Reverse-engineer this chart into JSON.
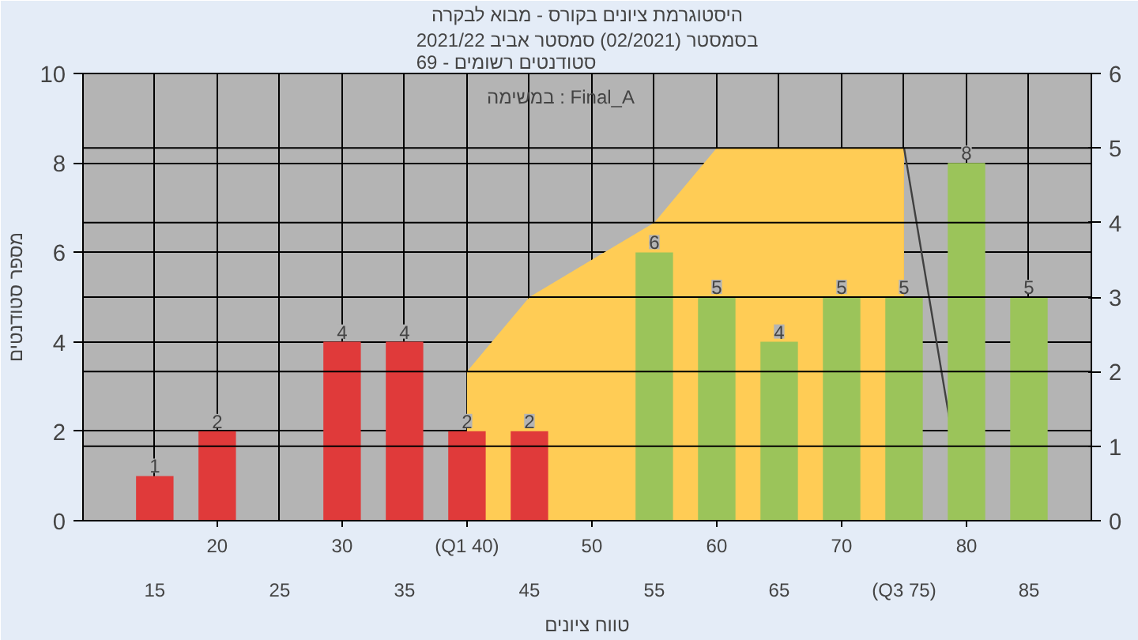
{
  "chart_data": {
    "type": "bar",
    "title": "היסטוגרמת ציונים בקורס - מבוא לבקרה",
    "subtitle": "בסמסטר (02/2021) סמסטר אביב 2021/22\nסטודנטים רשומים - 69",
    "xlabel": "טווח ציונים",
    "ylabel": "מספר סטודנטים",
    "annotations": [
      "במשימה : Final_A"
    ],
    "categories": [
      "15",
      "20",
      "25",
      "30",
      "35",
      "(Q1 40)",
      "45",
      "50",
      "55",
      "60",
      "65",
      "70",
      "(Q3 75)",
      "80",
      "85"
    ],
    "series": [
      {
        "type": "area",
        "axis": "y2",
        "color": "#ffcc55",
        "values": [
          null,
          null,
          null,
          null,
          null,
          2,
          3,
          3.5,
          4,
          5,
          5,
          5,
          5,
          null,
          null
        ]
      },
      {
        "type": "line",
        "axis": "y2",
        "color": "#404040",
        "values": [
          null,
          null,
          null,
          null,
          null,
          null,
          null,
          null,
          null,
          null,
          null,
          null,
          5,
          0,
          null
        ]
      },
      {
        "colors": [
          "#e03a3a",
          "#e03a3a",
          "#e03a3a",
          "#e03a3a",
          "#e03a3a",
          "#e03a3a",
          "#e03a3a",
          "#9bc45a",
          "#9bc45a",
          "#9bc45a",
          "#9bc45a",
          "#9bc45a",
          "#9bc45a",
          "#9bc45a",
          "#9bc45a"
        ],
        "values": [
          1,
          2,
          0,
          4,
          4,
          2,
          2,
          0,
          6,
          5,
          4,
          5,
          5,
          8,
          5
        ],
        "value_labels": [
          "1",
          "2",
          null,
          "4",
          "4",
          "2",
          "2",
          null,
          "6",
          "5",
          "4",
          "5",
          "5",
          "8",
          "5"
        ]
      }
    ],
    "ylim": [
      0,
      10
    ],
    "yticks": [
      0,
      2,
      4,
      6,
      8,
      10
    ],
    "y2lim": [
      0,
      6
    ],
    "y2ticks": [
      0,
      1,
      2,
      3,
      4,
      5,
      6
    ],
    "grid": true
  }
}
